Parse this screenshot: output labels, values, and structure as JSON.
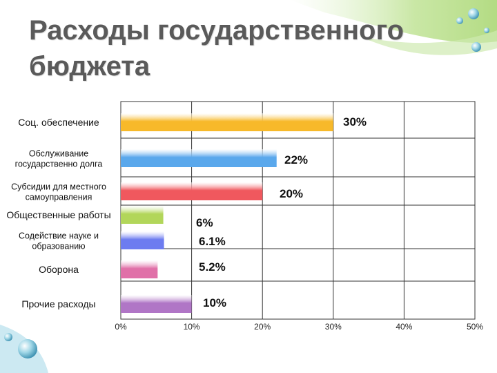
{
  "slide": {
    "title_line1": "Расходы государственного",
    "title_line2": "бюджета"
  },
  "chart_data": {
    "type": "bar",
    "orientation": "horizontal",
    "title": "",
    "xlabel": "",
    "ylabel": "",
    "xlim": [
      0,
      50
    ],
    "x_ticks": [
      "0%",
      "10%",
      "20%",
      "30%",
      "40%",
      "50%"
    ],
    "grid": true,
    "legend": "none",
    "categories": [
      [
        "Соц. обеспечение"
      ],
      [
        "Обслуживание",
        "государственно долга"
      ],
      [
        "Субсидии для местного",
        "самоуправления"
      ],
      [
        "Общественные работы"
      ],
      [
        "Содействие науке и",
        "образованию"
      ],
      [
        "Оборона"
      ],
      [
        "Прочие расходы"
      ]
    ],
    "values": [
      30,
      22,
      20,
      6,
      6.1,
      5.2,
      10
    ],
    "data_labels": [
      "30%",
      "22%",
      "20%",
      "6%",
      "6.1%",
      "5.2%",
      "10%"
    ],
    "colors": [
      "#f7b92a",
      "#5aa8ec",
      "#f0585e",
      "#b2d65a",
      "#6d7cf0",
      "#e070a8",
      "#b076c6"
    ]
  }
}
